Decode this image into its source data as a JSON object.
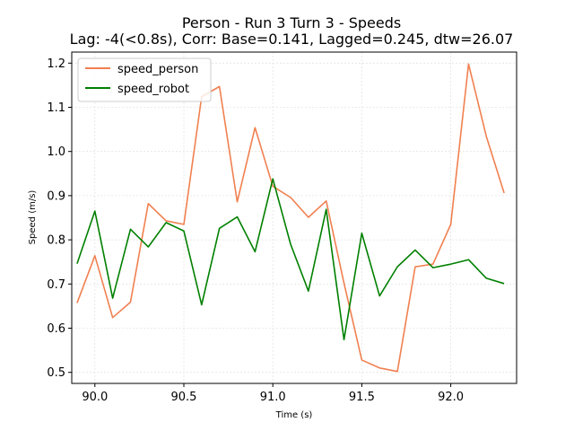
{
  "chart_data": {
    "type": "line",
    "title": "Person - Run 3 Turn 3 - Speeds",
    "subtitle": "Lag: -4(<0.8s), Corr: Base=0.141, Lagged=0.245, dtw=26.07",
    "xlabel": "Time (s)",
    "ylabel": "Speed (m/s)",
    "xlim": [
      89.87,
      92.37
    ],
    "ylim": [
      0.475,
      1.225
    ],
    "xticks": [
      "90.0",
      "90.5",
      "91.0",
      "91.5",
      "92.0"
    ],
    "yticks": [
      "0.5",
      "0.6",
      "0.7",
      "0.8",
      "0.9",
      "1.0",
      "1.1",
      "1.2"
    ],
    "grid": true,
    "legend_position": "top-left",
    "x": [
      89.9,
      90.0,
      90.1,
      90.2,
      90.3,
      90.4,
      90.5,
      90.6,
      90.7,
      90.8,
      90.9,
      91.0,
      91.1,
      91.2,
      91.3,
      91.4,
      91.5,
      91.6,
      91.7,
      91.8,
      91.9,
      92.0,
      92.1,
      92.2,
      92.3
    ],
    "series": [
      {
        "name": "speed_person",
        "color": "#f08050",
        "values": [
          0.657,
          0.764,
          0.624,
          0.659,
          0.882,
          0.843,
          0.835,
          1.124,
          1.147,
          0.886,
          1.054,
          0.921,
          0.896,
          0.851,
          0.888,
          0.702,
          0.528,
          0.51,
          0.502,
          0.739,
          0.745,
          0.835,
          1.198,
          1.034,
          0.906
        ]
      },
      {
        "name": "speed_robot",
        "color": "#008000",
        "values": [
          0.746,
          0.865,
          0.668,
          0.824,
          0.784,
          0.839,
          0.82,
          0.653,
          0.826,
          0.852,
          0.773,
          0.938,
          0.79,
          0.684,
          0.869,
          0.574,
          0.815,
          0.673,
          0.739,
          0.777,
          0.737,
          0.745,
          0.755,
          0.713,
          0.701
        ]
      }
    ]
  }
}
